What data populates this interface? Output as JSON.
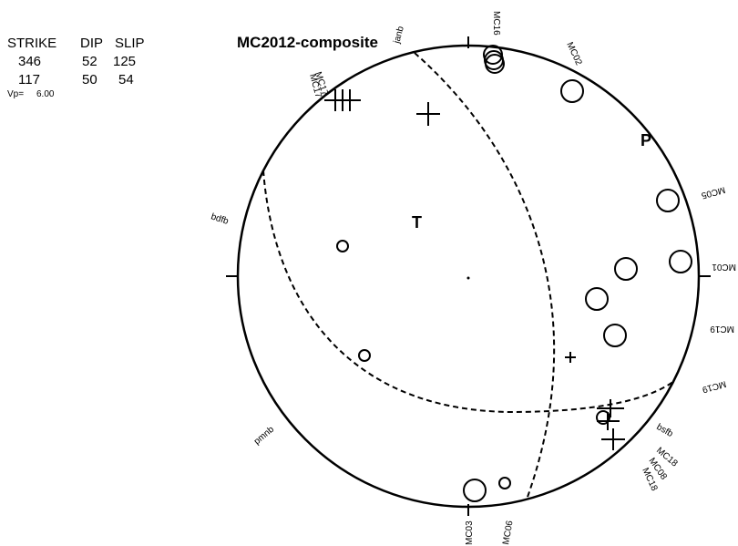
{
  "header": {
    "columns": [
      "STRIKE",
      "DIP",
      "SLIP"
    ],
    "rows": [
      [
        346,
        52,
        125
      ],
      [
        117,
        50,
        54
      ]
    ],
    "vp_label": "Vp=",
    "vp_value": "6.00"
  },
  "title": "MC2012-composite",
  "axes_labels": {
    "t": "T",
    "p": "P"
  },
  "stations": [
    "janb",
    "MC16",
    "MC02",
    "MC05",
    "MC01",
    "MC19",
    "MC19",
    "bsfb",
    "MC18",
    "MC18",
    "MC08",
    "MC06",
    "MC03",
    "pmnb",
    "bdfb",
    "MC17",
    "MC17"
  ]
}
